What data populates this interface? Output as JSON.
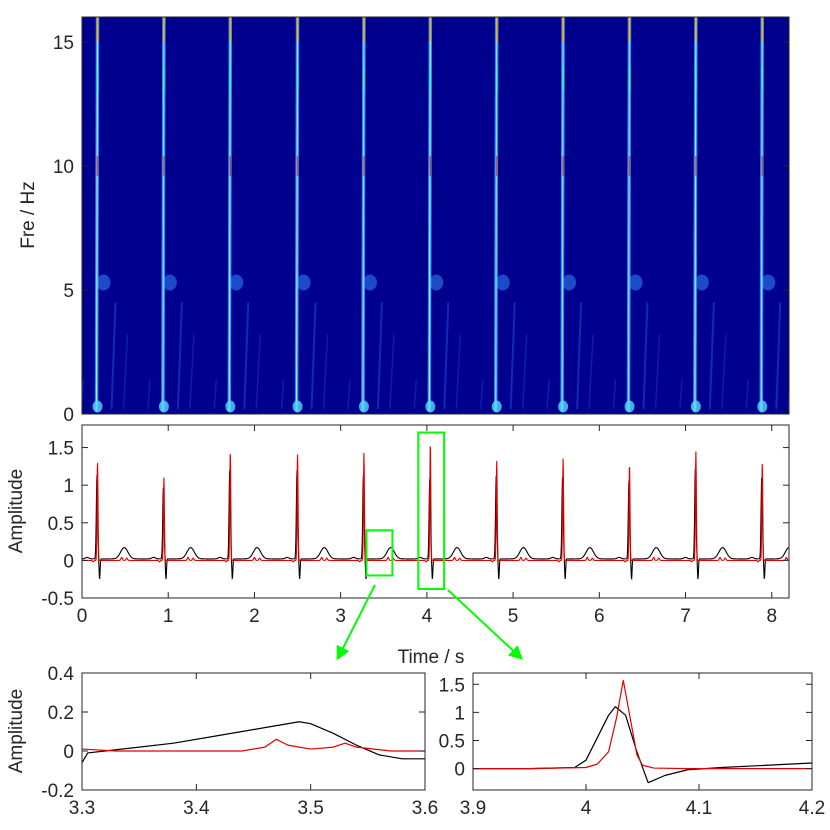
{
  "colors": {
    "background": "#ffffff",
    "axis": "#262626",
    "series_black": "#000000",
    "series_red": "#e00000",
    "zoom_box": "#00ff00",
    "spectrogram_bg": "#00008f"
  },
  "chart_data": [
    {
      "id": "spectrogram",
      "type": "heatmap",
      "colormap": "jet",
      "xlabel": "",
      "ylabel": "Fre / Hz",
      "xlim": [
        0,
        8.2
      ],
      "ylim": [
        0,
        16
      ],
      "yticks": [
        0,
        5,
        10,
        15
      ],
      "ytick_labels": [
        "0",
        "5",
        "10",
        "15"
      ],
      "xticks": [],
      "beat_times": [
        0.18,
        0.95,
        1.72,
        2.5,
        3.27,
        4.04,
        4.81,
        5.58,
        6.35,
        7.12,
        7.89
      ],
      "ridges": [
        {
          "x": 0.18,
          "y_top": 16,
          "y_bottom": 0.1,
          "peak": 1.0
        },
        {
          "x": 0.95,
          "y_top": 16,
          "y_bottom": 0.1,
          "peak": 0.8
        },
        {
          "x": 1.72,
          "y_top": 16,
          "y_bottom": 0.1,
          "peak": 0.95
        },
        {
          "x": 2.5,
          "y_top": 16,
          "y_bottom": 0.1,
          "peak": 0.95
        },
        {
          "x": 3.27,
          "y_top": 16,
          "y_bottom": 0.1,
          "peak": 0.8
        },
        {
          "x": 4.04,
          "y_top": 16,
          "y_bottom": 0.1,
          "peak": 1.0
        },
        {
          "x": 4.81,
          "y_top": 16,
          "y_bottom": 0.1,
          "peak": 0.8
        },
        {
          "x": 5.58,
          "y_top": 16,
          "y_bottom": 0.1,
          "peak": 0.8
        },
        {
          "x": 6.35,
          "y_top": 16,
          "y_bottom": 0.1,
          "peak": 0.8
        },
        {
          "x": 7.12,
          "y_top": 16,
          "y_bottom": 0.1,
          "peak": 0.95
        },
        {
          "x": 7.89,
          "y_top": 16,
          "y_bottom": 0.1,
          "peak": 0.8
        }
      ]
    },
    {
      "id": "waveform",
      "type": "line",
      "xlabel": "Time / s",
      "ylabel": "Amplitude",
      "xlim": [
        0,
        8.2
      ],
      "ylim": [
        -0.5,
        1.8
      ],
      "xticks": [
        0,
        1,
        2,
        3,
        4,
        5,
        6,
        7,
        8
      ],
      "xtick_labels": [
        "0",
        "1",
        "2",
        "3",
        "4",
        "5",
        "6",
        "7",
        "8"
      ],
      "yticks": [
        -0.5,
        0,
        0.5,
        1,
        1.5
      ],
      "ytick_labels": [
        "-0.5",
        "0",
        "0.5",
        "1",
        "1.5"
      ],
      "beats": [
        {
          "t": 0.18,
          "red_peak": 1.32,
          "black_peak": 1.12
        },
        {
          "t": 0.95,
          "red_peak": 1.1,
          "black_peak": 0.95
        },
        {
          "t": 1.72,
          "red_peak": 1.46,
          "black_peak": 1.2
        },
        {
          "t": 2.5,
          "red_peak": 1.43,
          "black_peak": 1.18
        },
        {
          "t": 3.27,
          "red_peak": 1.43,
          "black_peak": 1.12
        },
        {
          "t": 4.04,
          "red_peak": 1.57,
          "black_peak": 1.08
        },
        {
          "t": 4.81,
          "red_peak": 1.33,
          "black_peak": 1.1
        },
        {
          "t": 5.58,
          "red_peak": 1.36,
          "black_peak": 1.1
        },
        {
          "t": 6.35,
          "red_peak": 1.29,
          "black_peak": 1.05
        },
        {
          "t": 7.12,
          "red_peak": 1.45,
          "black_peak": 1.2
        },
        {
          "t": 7.89,
          "red_peak": 1.3,
          "black_peak": 1.1
        }
      ],
      "zoom_boxes": [
        {
          "x": [
            3.3,
            3.6
          ],
          "y": [
            -0.2,
            0.4
          ]
        },
        {
          "x": [
            3.9,
            4.2
          ],
          "y": [
            -0.38,
            1.7
          ]
        }
      ]
    },
    {
      "id": "zoom-left",
      "type": "line",
      "xlabel": "",
      "ylabel": "Amplitude",
      "xlim": [
        3.3,
        3.6
      ],
      "ylim": [
        -0.2,
        0.4
      ],
      "xticks": [
        3.3,
        3.4,
        3.5,
        3.6
      ],
      "xtick_labels": [
        "3.3",
        "3.4",
        "3.5",
        "3.6"
      ],
      "yticks": [
        -0.2,
        0,
        0.2,
        0.4
      ],
      "ytick_labels": [
        "-0.2",
        "0",
        "0.2",
        "0.4"
      ],
      "series": [
        {
          "color": "#000000",
          "x": [
            3.3,
            3.305,
            3.32,
            3.35,
            3.38,
            3.41,
            3.44,
            3.47,
            3.49,
            3.5,
            3.52,
            3.54,
            3.56,
            3.58,
            3.6
          ],
          "y": [
            -0.06,
            -0.01,
            0.0,
            0.02,
            0.04,
            0.07,
            0.1,
            0.13,
            0.15,
            0.14,
            0.09,
            0.03,
            -0.02,
            -0.04,
            -0.04
          ]
        },
        {
          "color": "#e00000",
          "x": [
            3.3,
            3.33,
            3.36,
            3.4,
            3.44,
            3.46,
            3.47,
            3.48,
            3.5,
            3.52,
            3.53,
            3.54,
            3.57,
            3.6
          ],
          "y": [
            0.01,
            0.0,
            0.0,
            0.0,
            0.0,
            0.02,
            0.06,
            0.03,
            0.01,
            0.02,
            0.04,
            0.02,
            0.0,
            0.0
          ]
        }
      ]
    },
    {
      "id": "zoom-right",
      "type": "line",
      "xlabel": "",
      "ylabel": "",
      "xlim": [
        3.9,
        4.2
      ],
      "ylim": [
        -0.38,
        1.7
      ],
      "xticks": [
        3.9,
        4.0,
        4.1,
        4.2
      ],
      "xtick_labels": [
        "3.9",
        "4",
        "4.1",
        "4.2"
      ],
      "yticks": [
        0,
        0.5,
        1,
        1.5
      ],
      "ytick_labels": [
        "0",
        "0.5",
        "1",
        "1.5"
      ],
      "series": [
        {
          "color": "#000000",
          "x": [
            3.9,
            3.95,
            3.99,
            4.0,
            4.01,
            4.02,
            4.026,
            4.035,
            4.045,
            4.055,
            4.07,
            4.09,
            4.12,
            4.15,
            4.2
          ],
          "y": [
            0.0,
            0.0,
            0.02,
            0.15,
            0.55,
            0.95,
            1.1,
            0.95,
            0.3,
            -0.25,
            -0.12,
            -0.02,
            0.02,
            0.05,
            0.1
          ]
        },
        {
          "color": "#e00000",
          "x": [
            3.9,
            3.95,
            4.0,
            4.01,
            4.02,
            4.027,
            4.033,
            4.04,
            4.045,
            4.05,
            4.06,
            4.09,
            4.15,
            4.2
          ],
          "y": [
            0.0,
            0.0,
            0.02,
            0.08,
            0.3,
            0.9,
            1.57,
            0.8,
            0.25,
            0.06,
            0.01,
            0.0,
            0.0,
            0.0
          ]
        }
      ]
    }
  ]
}
